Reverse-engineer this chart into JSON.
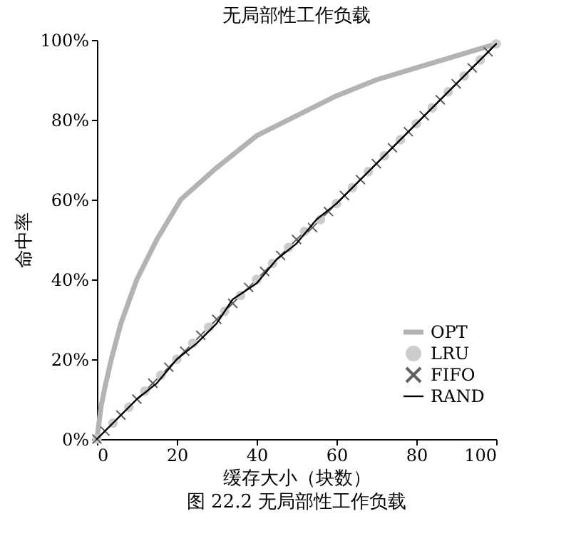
{
  "chart_data": {
    "type": "line",
    "title": "无局部性工作负载",
    "xlabel": "缓存大小（块数）",
    "ylabel": "命中率",
    "annotations": [
      "图 22.2    无局部性工作负载"
    ],
    "xlim": [
      0,
      100
    ],
    "xticks": [
      0,
      20,
      40,
      60,
      80,
      100
    ],
    "ylim": [
      0,
      100
    ],
    "yticks": [
      {
        "value": 0,
        "label": "0%"
      },
      {
        "value": 20,
        "label": "20%"
      },
      {
        "value": 40,
        "label": "40%"
      },
      {
        "value": 60,
        "label": "60%"
      },
      {
        "value": 80,
        "label": "80%"
      },
      {
        "value": 100,
        "label": "100%"
      }
    ],
    "grid": false,
    "legend": "bottom right",
    "series": [
      {
        "name": "OPT",
        "marker": "none",
        "color": "#b3b3b3",
        "x": [
          0,
          1,
          2,
          3.6,
          6,
          10,
          15,
          21,
          30,
          40,
          50,
          60,
          70,
          80,
          90,
          100
        ],
        "values": [
          0,
          8,
          13,
          20,
          29,
          40,
          50,
          60,
          68,
          76,
          81,
          86,
          90,
          93,
          96,
          99
        ]
      },
      {
        "name": "LRU",
        "type": "scatter",
        "marker": "circle",
        "color": "#cccccc",
        "x": [
          0,
          4,
          8,
          12,
          16,
          20,
          24,
          28,
          32,
          36,
          40,
          44,
          48,
          52,
          56,
          60,
          64,
          68,
          72,
          76,
          80,
          84,
          88,
          92,
          96,
          100
        ],
        "values": [
          0,
          4,
          8,
          12,
          16,
          20,
          24,
          28,
          32,
          36,
          40,
          44,
          48,
          52,
          55,
          59,
          63,
          67,
          71,
          75,
          79,
          83,
          87,
          91,
          95,
          99
        ]
      },
      {
        "name": "FIFO",
        "type": "scatter",
        "marker": "cross",
        "color": "#606060",
        "x": [
          0,
          2,
          6,
          10,
          14,
          18,
          22,
          26,
          30,
          34,
          38,
          42,
          46,
          50,
          54,
          58,
          62,
          66,
          70,
          74,
          78,
          82,
          86,
          90,
          94,
          98
        ],
        "values": [
          0,
          2,
          6,
          10,
          14,
          18,
          22,
          26,
          30,
          34,
          38,
          42,
          46,
          50,
          53,
          57,
          61,
          65,
          69,
          73,
          77,
          81,
          85,
          89,
          93,
          97
        ]
      },
      {
        "name": "RAND",
        "marker": "none",
        "color": "#000000",
        "x": [
          0,
          5,
          10,
          15,
          20,
          25,
          30,
          34,
          40,
          45,
          50,
          55,
          60,
          65,
          70,
          75,
          80,
          85,
          90,
          95,
          100
        ],
        "values": [
          0,
          5,
          10,
          14,
          20,
          24,
          29,
          35,
          39,
          45,
          49,
          55,
          59,
          64,
          69,
          74,
          79,
          84,
          89,
          94,
          99
        ]
      }
    ]
  }
}
